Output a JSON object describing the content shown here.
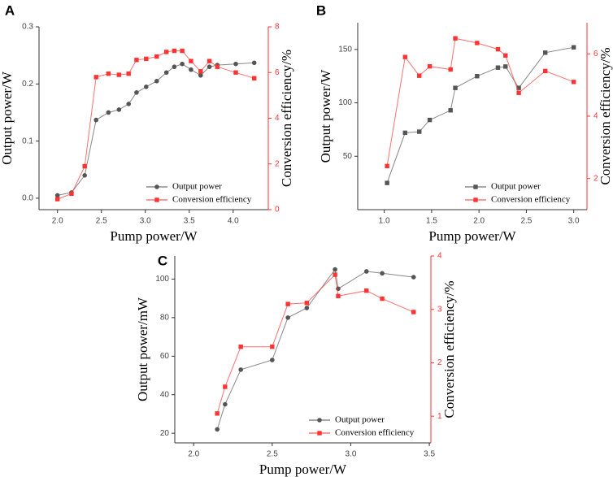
{
  "chart_data": [
    {
      "type": "line",
      "label": "A",
      "xlabel": "Pump power/W",
      "ylabel": "Output power/W",
      "y2label": "Conversion efficiency/%",
      "x": [
        2.0,
        2.16,
        2.31,
        2.44,
        2.58,
        2.7,
        2.81,
        2.9,
        3.01,
        3.13,
        3.24,
        3.33,
        3.42,
        3.52,
        3.63,
        3.73,
        3.82,
        4.03,
        4.24
      ],
      "series": [
        {
          "name": "Output power",
          "color": "#555555",
          "marker": "circle",
          "axis": "y",
          "values": [
            0.005,
            0.01,
            0.04,
            0.137,
            0.15,
            0.155,
            0.165,
            0.185,
            0.195,
            0.205,
            0.22,
            0.23,
            0.235,
            0.225,
            0.215,
            0.23,
            0.233,
            0.235,
            0.237
          ]
        },
        {
          "name": "Conversion efficiency",
          "color": "#ff3333",
          "marker": "square",
          "axis": "y2",
          "values": [
            0.46,
            0.7,
            1.9,
            5.8,
            5.95,
            5.9,
            5.95,
            6.55,
            6.6,
            6.7,
            6.9,
            6.95,
            6.95,
            6.5,
            6.05,
            6.5,
            6.25,
            6.0,
            5.75
          ]
        }
      ],
      "xlim": [
        1.79,
        4.4
      ],
      "xticks": [
        {
          "value": 2.0,
          "label": "2.0"
        },
        2.5,
        {
          "value": 3.0,
          "label": "3.0"
        },
        3.5,
        {
          "value": 4.0,
          "label": "4.0"
        }
      ],
      "ylim": [
        -0.02,
        0.3
      ],
      "yticks": [
        {
          "value": 0,
          "label": "0.0"
        },
        0.1,
        0.2,
        0.3
      ],
      "y2lim": [
        0,
        8
      ],
      "y2ticks": [
        0,
        2,
        4,
        6,
        8
      ],
      "legend": "lower right"
    },
    {
      "type": "line",
      "label": "B",
      "xlabel": "Pump power/W",
      "ylabel": "Output power/W",
      "y2label": "Conversion efficiency/%",
      "x": [
        1.03,
        1.22,
        1.37,
        1.48,
        1.7,
        1.75,
        1.98,
        2.2,
        2.28,
        2.42,
        2.7,
        3.0
      ],
      "series": [
        {
          "name": "Output power",
          "color": "#555555",
          "marker": "square",
          "axis": "y",
          "values": [
            25,
            72,
            73,
            84,
            93,
            114,
            125,
            133,
            134,
            114,
            147,
            152
          ]
        },
        {
          "name": "Conversion efficiency",
          "color": "#ff3333",
          "marker": "square",
          "axis": "y2",
          "values": [
            2.4,
            5.9,
            5.3,
            5.6,
            5.5,
            6.5,
            6.35,
            6.15,
            5.95,
            4.75,
            5.45,
            5.1
          ]
        }
      ],
      "xlim": [
        0.72,
        3.14
      ],
      "xticks": [
        {
          "value": 1.0,
          "label": "1.0"
        },
        1.5,
        {
          "value": 2.0,
          "label": "2.0"
        },
        2.5,
        {
          "value": 3.0,
          "label": "3.0"
        }
      ],
      "ylim": [
        0,
        175
      ],
      "yticks": [
        50,
        100,
        150
      ],
      "y2lim": [
        1,
        7
      ],
      "y2ticks": [
        2,
        4,
        6
      ],
      "legend": "lower right"
    },
    {
      "type": "line",
      "label": "C",
      "xlabel": "Pump power/W",
      "ylabel": "Output power/mW",
      "y2label": "Conversion efficiency/%",
      "x": [
        2.15,
        2.2,
        2.3,
        2.5,
        2.6,
        2.72,
        2.9,
        2.92,
        3.1,
        3.2,
        3.4
      ],
      "series": [
        {
          "name": "Output power",
          "color": "#555555",
          "marker": "circle",
          "axis": "y",
          "values": [
            22,
            35,
            53,
            58,
            80,
            85,
            105,
            95,
            104,
            103,
            101
          ]
        },
        {
          "name": "Conversion efficiency",
          "color": "#ff3333",
          "marker": "square",
          "axis": "y2",
          "values": [
            1.05,
            1.55,
            2.3,
            2.3,
            3.1,
            3.12,
            3.65,
            3.25,
            3.35,
            3.2,
            2.95
          ]
        }
      ],
      "xlim": [
        1.88,
        3.51
      ],
      "xticks": [
        {
          "value": 2.0,
          "label": "2.0"
        },
        2.5,
        {
          "value": 3.0,
          "label": "3.0"
        },
        3.5
      ],
      "ylim": [
        15,
        112
      ],
      "yticks": [
        20,
        40,
        60,
        80,
        100
      ],
      "y2lim": [
        0.5,
        4
      ],
      "y2ticks": [
        1,
        2,
        3,
        4
      ],
      "legend": "lower right"
    }
  ]
}
